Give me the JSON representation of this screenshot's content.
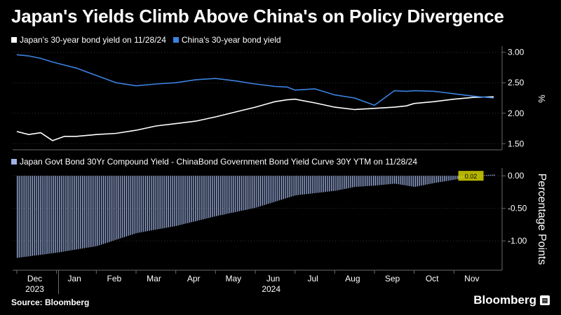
{
  "title": "Japan's Yields Climb Above China's on Policy Divergence",
  "source": "Source: Bloomberg",
  "brand": "Bloomberg",
  "brand_badge_icon": "chart-badge-icon",
  "colors": {
    "japan": "#ffffff",
    "china": "#3b82e0",
    "spread": "#9fb3e6",
    "highlight": "#d4d400"
  },
  "x_axis": {
    "months": [
      "Dec",
      "Jan",
      "Feb",
      "Mar",
      "Apr",
      "May",
      "Jun",
      "Jul",
      "Aug",
      "Sep",
      "Oct",
      "Nov"
    ],
    "years": [
      "2023",
      "2024"
    ],
    "start": "2023-11-28",
    "end": "2024-11-28"
  },
  "chart_data": [
    {
      "type": "line",
      "legend": [
        "Japan's 30-year bond yield on 11/28/24",
        "China's 30-year bond yield"
      ],
      "ylabel": "%",
      "ylim": [
        1.4,
        3.1
      ],
      "yticks": [
        "3.00",
        "2.50",
        "2.00",
        "1.50"
      ],
      "grid": true,
      "x_months": [
        0,
        0.3,
        0.6,
        0.9,
        1.2,
        1.5,
        2,
        2.5,
        3,
        3.5,
        4,
        4.5,
        5,
        5.5,
        6,
        6.5,
        6.8,
        7,
        7.5,
        8,
        8.5,
        9,
        9.5,
        9.8,
        10,
        10.5,
        11,
        11.5,
        12
      ],
      "series": [
        {
          "name": "Japan's 30-year bond yield on 11/28/24",
          "values": [
            1.7,
            1.65,
            1.68,
            1.55,
            1.62,
            1.62,
            1.65,
            1.67,
            1.72,
            1.79,
            1.83,
            1.87,
            1.94,
            2.02,
            2.1,
            2.19,
            2.22,
            2.23,
            2.17,
            2.1,
            2.06,
            2.08,
            2.1,
            2.12,
            2.16,
            2.19,
            2.23,
            2.26,
            2.27
          ]
        },
        {
          "name": "China's 30-year bond yield",
          "values": [
            2.96,
            2.94,
            2.9,
            2.84,
            2.79,
            2.74,
            2.62,
            2.5,
            2.45,
            2.48,
            2.5,
            2.55,
            2.57,
            2.53,
            2.48,
            2.44,
            2.43,
            2.38,
            2.4,
            2.3,
            2.25,
            2.13,
            2.37,
            2.36,
            2.37,
            2.36,
            2.32,
            2.28,
            2.25
          ]
        }
      ]
    },
    {
      "type": "bar",
      "legend": "Japan Govt Bond 30Yr Compound Yield - ChinaBond Government Bond Yield Curve 30Y YTM on 11/28/24",
      "ylabel": "Percentage Points",
      "ylim": [
        -1.45,
        0.12
      ],
      "yticks": [
        "0.00",
        "-0.50",
        "-1.00"
      ],
      "x_months": [
        0,
        1,
        2,
        3,
        4,
        5,
        6,
        7,
        8,
        8.5,
        9,
        9.5,
        10,
        10.5,
        11,
        11.5,
        12
      ],
      "values": [
        -1.26,
        -1.18,
        -1.08,
        -0.88,
        -0.77,
        -0.62,
        -0.49,
        -0.3,
        -0.23,
        -0.17,
        -0.15,
        -0.12,
        -0.17,
        -0.11,
        -0.06,
        0.0,
        0.02
      ],
      "highlight_last": "0.02"
    }
  ]
}
